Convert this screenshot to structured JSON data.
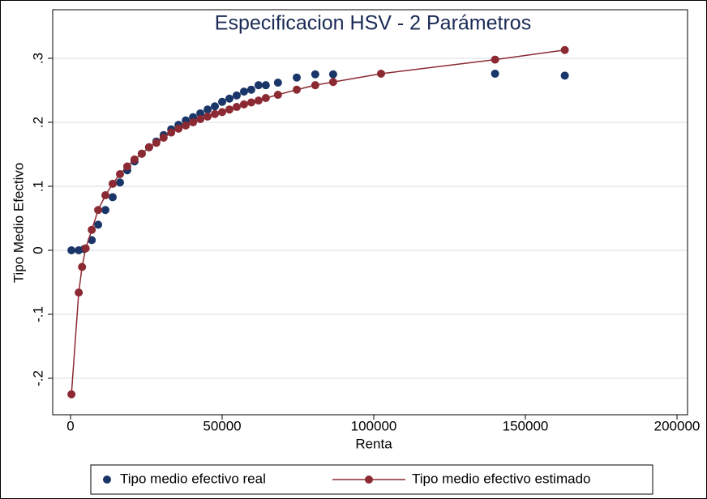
{
  "chart_data": {
    "type": "scatter-line",
    "title": "Especificacion HSV - 2 Parámetros",
    "x_label": "Renta",
    "y_label": "Tipo Medio Efectivo",
    "xlim": [
      0,
      200000
    ],
    "xticks": [
      0,
      50000,
      100000,
      150000,
      200000
    ],
    "ylim": [
      -0.25,
      0.35
    ],
    "yticks": [
      {
        "value": -0.2,
        "label": "-.2"
      },
      {
        "value": -0.1,
        "label": "-.1"
      },
      {
        "value": 0,
        "label": "0"
      },
      {
        "value": 0.1,
        "label": ".1"
      },
      {
        "value": 0.2,
        "label": ".2"
      },
      {
        "value": 0.3,
        "label": ".3"
      }
    ],
    "grid": true,
    "series": [
      {
        "name": "Tipo medio efectivo real",
        "color": "#1a3668",
        "style": "markers",
        "x": [
          300,
          2700,
          4500,
          7000,
          9100,
          11500,
          13900,
          16300,
          18700,
          21100,
          23500,
          25900,
          28300,
          30700,
          33200,
          35600,
          38000,
          40400,
          42800,
          45200,
          47600,
          50000,
          52400,
          54800,
          57200,
          59600,
          62000,
          64400,
          68400,
          74600,
          80700,
          86600,
          140000,
          163000
        ],
        "values": [
          0,
          0,
          0.002,
          0.016,
          0.04,
          0.063,
          0.083,
          0.106,
          0.125,
          0.139,
          0.151,
          0.161,
          0.17,
          0.18,
          0.189,
          0.196,
          0.203,
          0.208,
          0.214,
          0.22,
          0.225,
          0.232,
          0.237,
          0.242,
          0.248,
          0.251,
          0.258,
          0.258,
          0.262,
          0.27,
          0.275,
          0.275,
          0.276,
          0.273
        ]
      },
      {
        "name": "Tipo medio efectivo estimado",
        "color": "#8b2a32",
        "style": "line-markers",
        "x": [
          300,
          2700,
          3800,
          5000,
          7000,
          9100,
          11500,
          13900,
          16300,
          18700,
          21100,
          23500,
          25900,
          28300,
          30700,
          33200,
          35600,
          38000,
          40400,
          42800,
          45200,
          47600,
          50000,
          52400,
          54800,
          57200,
          59600,
          62000,
          64400,
          68400,
          74600,
          80700,
          86600,
          102400,
          140000,
          163000
        ],
        "values": [
          -0.225,
          -0.066,
          -0.026,
          0.003,
          0.032,
          0.063,
          0.086,
          0.104,
          0.119,
          0.131,
          0.142,
          0.151,
          0.161,
          0.168,
          0.176,
          0.184,
          0.19,
          0.195,
          0.2,
          0.205,
          0.209,
          0.213,
          0.216,
          0.22,
          0.224,
          0.228,
          0.231,
          0.234,
          0.238,
          0.243,
          0.251,
          0.258,
          0.263,
          0.276,
          0.298,
          0.313
        ]
      }
    ]
  }
}
